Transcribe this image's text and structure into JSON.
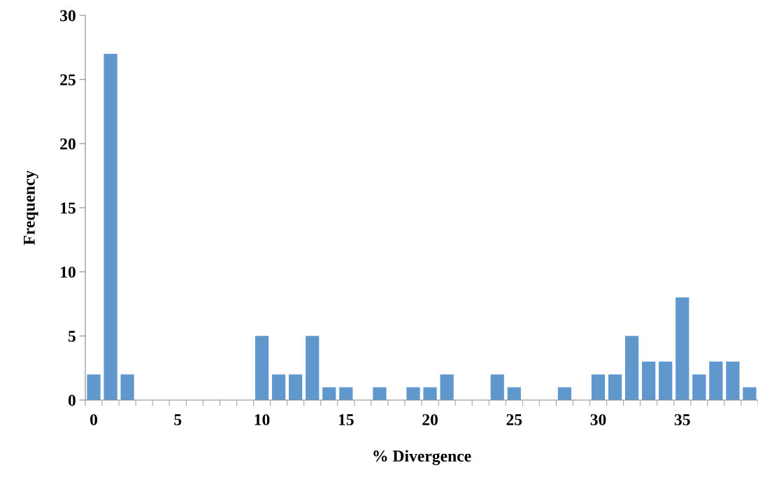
{
  "chart_data": {
    "type": "bar",
    "xlabel": "% Divergence",
    "ylabel": "Frequency",
    "categories": [
      "0",
      null,
      null,
      null,
      null,
      "5",
      null,
      null,
      null,
      null,
      "10",
      null,
      null,
      null,
      null,
      "15",
      null,
      null,
      null,
      null,
      "20",
      null,
      null,
      null,
      null,
      "25",
      null,
      null,
      null,
      null,
      "30",
      null,
      null,
      null,
      null,
      "35",
      null,
      null,
      null,
      null
    ],
    "values": [
      2,
      27,
      2,
      0,
      0,
      0,
      0,
      0,
      0,
      0,
      5,
      2,
      2,
      5,
      1,
      1,
      0,
      1,
      0,
      1,
      1,
      2,
      0,
      0,
      2,
      1,
      0,
      0,
      1,
      0,
      2,
      2,
      5,
      3,
      3,
      8,
      2,
      3,
      3,
      1
    ],
    "color": "#6097cd",
    "ylim": [
      0,
      30
    ],
    "yticks": [
      0,
      5,
      10,
      15,
      20,
      25,
      30
    ],
    "grid": false,
    "legend": false
  }
}
